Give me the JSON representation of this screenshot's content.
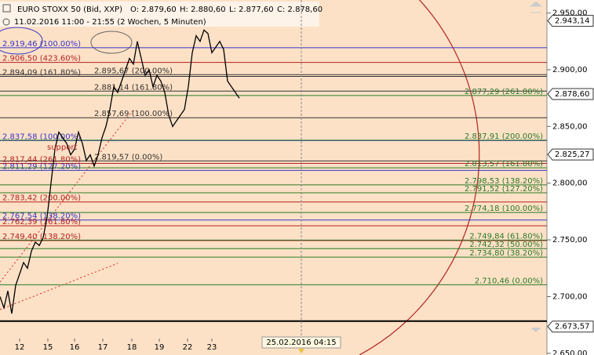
{
  "header": {
    "symbol": "EURO STOXX 50 (Bid, XXP)",
    "ohlc": [
      "O: 2.879,60",
      "H: 2.880,60",
      "L: 2.877,60",
      "C: 2.878,60"
    ],
    "period": "11.02.2016 11:00 - 21:55 (2 Wochen, 5 Minuten)"
  },
  "chart_data": {
    "type": "line",
    "color": "#000000",
    "x": [
      0,
      1,
      2,
      3,
      4,
      5,
      6,
      7,
      8,
      9,
      10,
      11,
      12,
      13,
      14,
      15,
      16,
      17,
      18,
      19,
      20,
      21,
      22,
      23,
      24,
      25,
      26,
      27,
      28,
      29,
      30,
      31,
      32,
      33,
      34,
      35,
      36,
      37,
      38,
      39,
      40,
      41,
      42,
      43,
      44,
      45,
      46,
      47,
      48,
      49,
      50,
      51,
      52,
      53,
      54,
      55,
      56,
      57,
      58,
      59,
      60,
      61
    ],
    "values": [
      2700,
      2690,
      2705,
      2685,
      2710,
      2720,
      2730,
      2725,
      2740,
      2748,
      2745,
      2752,
      2770,
      2800,
      2830,
      2845,
      2840,
      2835,
      2825,
      2830,
      2845,
      2835,
      2820,
      2825,
      2815,
      2825,
      2840,
      2850,
      2865,
      2885,
      2880,
      2890,
      2900,
      2910,
      2905,
      2925,
      2910,
      2895,
      2900,
      2885,
      2895,
      2890,
      2880,
      2860,
      2850,
      2855,
      2860,
      2865,
      2885,
      2915,
      2930,
      2925,
      2935,
      2932,
      2915,
      2920,
      2925,
      2918,
      2890,
      2885,
      2880,
      2875
    ],
    "xlim": [
      0,
      139.4
    ],
    "ylim": [
      2648.5,
      2961.5
    ],
    "xticks": [
      {
        "value": 5,
        "label": "12"
      },
      {
        "value": 12.2,
        "label": "15"
      },
      {
        "value": 19,
        "label": "16"
      },
      {
        "value": 26.2,
        "label": "17"
      },
      {
        "value": 33.6,
        "label": "18"
      },
      {
        "value": 40.6,
        "label": "19"
      },
      {
        "value": 47.8,
        "label": "22"
      },
      {
        "value": 54,
        "label": "23"
      }
    ],
    "yticks": [
      {
        "value": 2950,
        "label": "2.950,00"
      },
      {
        "value": 2900,
        "label": "2.900,00"
      },
      {
        "value": 2850,
        "label": "2.850,00"
      },
      {
        "value": 2800,
        "label": "2.800,00"
      },
      {
        "value": 2750,
        "label": "2.750,00"
      },
      {
        "value": 2700,
        "label": "2.700,00"
      },
      {
        "value": 2650,
        "label": "2.650,00"
      }
    ],
    "levels": [
      {
        "value": 2919.46,
        "label": "2.919,46 (100.00%)",
        "color": "#3535c8",
        "side": "left"
      },
      {
        "value": 2906.5,
        "label": "2.906,50 (423.60%)",
        "color": "#b22222",
        "side": "left"
      },
      {
        "value": 2894.09,
        "label": "2.894,09 (161.80%)",
        "color": "#333333",
        "side": "left"
      },
      {
        "value": 2895.67,
        "label": "2.895,67 (200.00%)",
        "color": "#333333",
        "side": "mid"
      },
      {
        "value": 2881.14,
        "label": "2.881,14 (161.80%)",
        "color": "#333333",
        "side": "mid"
      },
      {
        "value": 2857.69,
        "label": "2.857,69 (100.00%)",
        "color": "#333333",
        "side": "mid"
      },
      {
        "value": 2837.58,
        "label": "2.837,58 (100.00%)",
        "color": "#3535c8",
        "side": "left"
      },
      {
        "value": 2819.57,
        "label": "2.819,57 (0.00%)",
        "color": "#333333",
        "side": "mid"
      },
      {
        "value": 2817.44,
        "label": "2.817,44 (261.80%)",
        "color": "#b22222",
        "side": "left"
      },
      {
        "value": 2811.29,
        "label": "2.811,29 (127.20%)",
        "color": "#3535c8",
        "side": "left"
      },
      {
        "value": 2783.42,
        "label": "2.783,42 (200.00%)",
        "color": "#b22222",
        "side": "left"
      },
      {
        "value": 2767.54,
        "label": "2.767,54 (138.20%)",
        "color": "#3535c8",
        "side": "left"
      },
      {
        "value": 2762.39,
        "label": "2.762,39 (161.80%)",
        "color": "#b22222",
        "side": "left"
      },
      {
        "value": 2749.4,
        "label": "2.749,40 (138.20%)",
        "color": "#b22222",
        "side": "left"
      },
      {
        "value": 2877.29,
        "label": "2.877,29 (261.80%)",
        "color": "#2a7a2a",
        "side": "right"
      },
      {
        "value": 2837.91,
        "label": "2.837,91 (200.00%)",
        "color": "#2a7a2a",
        "side": "right"
      },
      {
        "value": 2813.57,
        "label": "2.813,57 (161.80%)",
        "color": "#2a7a2a",
        "side": "right"
      },
      {
        "value": 2798.53,
        "label": "2.798,53 (138.20%)",
        "color": "#2a7a2a",
        "side": "right"
      },
      {
        "value": 2791.52,
        "label": "2.791,52 (127.20%)",
        "color": "#2a7a2a",
        "side": "right"
      },
      {
        "value": 2774.18,
        "label": "2.774,18 (100.00%)",
        "color": "#2a7a2a",
        "side": "right"
      },
      {
        "value": 2749.84,
        "label": "2.749,84 (61.80%)",
        "color": "#2a7a2a",
        "side": "right"
      },
      {
        "value": 2742.32,
        "label": "2.742,32 (50.00%)",
        "color": "#2a7a2a",
        "side": "right"
      },
      {
        "value": 2734.8,
        "label": "2.734,80 (38.20%)",
        "color": "#2a7a2a",
        "side": "right"
      },
      {
        "value": 2710.46,
        "label": "2.710,46 (0.00%)",
        "color": "#2a7a2a",
        "side": "right"
      }
    ],
    "price_tags": [
      {
        "value": 2943.14,
        "label": "2.943,14"
      },
      {
        "value": 2878.6,
        "label": "2.878,60"
      },
      {
        "value": 2825.27,
        "label": "2.825,27"
      },
      {
        "value": 2673.57,
        "label": "2.673,57"
      }
    ],
    "crosshair": {
      "value": 76.8,
      "label": "25.02.2016 04:15"
    },
    "annotation": "support"
  }
}
